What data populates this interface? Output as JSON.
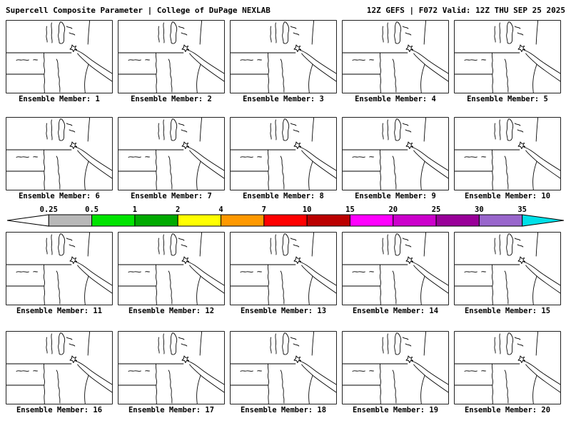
{
  "header": {
    "left_title": "Supercell Composite Parameter | College of DuPage NEXLAB",
    "right_title": "12Z GEFS | F072 Valid: 12Z THU SEP 25 2025"
  },
  "panels": [
    {
      "label": "Ensemble Member: 1"
    },
    {
      "label": "Ensemble Member: 2"
    },
    {
      "label": "Ensemble Member: 3"
    },
    {
      "label": "Ensemble Member: 4"
    },
    {
      "label": "Ensemble Member: 5"
    },
    {
      "label": "Ensemble Member: 6"
    },
    {
      "label": "Ensemble Member: 7"
    },
    {
      "label": "Ensemble Member: 8"
    },
    {
      "label": "Ensemble Member: 9"
    },
    {
      "label": "Ensemble Member: 10"
    },
    {
      "label": "Ensemble Member: 11"
    },
    {
      "label": "Ensemble Member: 12"
    },
    {
      "label": "Ensemble Member: 13"
    },
    {
      "label": "Ensemble Member: 14"
    },
    {
      "label": "Ensemble Member: 15"
    },
    {
      "label": "Ensemble Member: 16"
    },
    {
      "label": "Ensemble Member: 17"
    },
    {
      "label": "Ensemble Member: 18"
    },
    {
      "label": "Ensemble Member: 19"
    },
    {
      "label": "Ensemble Member: 20"
    }
  ],
  "colorbar": {
    "ticks": [
      "0.25",
      "0.5",
      "1",
      "2",
      "4",
      "7",
      "10",
      "15",
      "20",
      "25",
      "30",
      "35"
    ],
    "colors": [
      "#ffffff",
      "#b8b8b8",
      "#00e400",
      "#00aa00",
      "#ffff00",
      "#ff9900",
      "#ff0000",
      "#bb0000",
      "#ff00ff",
      "#cc00cc",
      "#990099",
      "#9966cc",
      "#00e0e8"
    ]
  }
}
